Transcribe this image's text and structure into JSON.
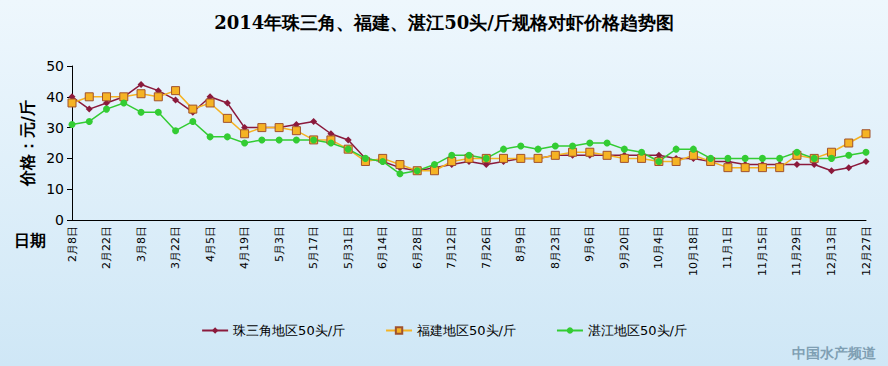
{
  "chart_data": {
    "type": "line",
    "title": "2014年珠三角、福建、湛江50头/斤规格对虾价格趋势图",
    "y_label": "价格：元/斤",
    "x_label": "日期",
    "annotations": [
      "中国水产频道"
    ],
    "categories": [
      "2月8日",
      null,
      "2月22日",
      null,
      "3月8日",
      null,
      "3月22日",
      null,
      "4月5日",
      null,
      "4月19日",
      null,
      "5月3日",
      null,
      "5月17日",
      null,
      "5月31日",
      null,
      "6月14日",
      null,
      "6月28日",
      null,
      "7月12日",
      null,
      "7月26日",
      null,
      "8月9日",
      null,
      "8月23日",
      null,
      "9月6日",
      null,
      "9月20日",
      null,
      "10月4日",
      null,
      "10月18日",
      null,
      "11月1日",
      null,
      "11月15日",
      null,
      "11月29日",
      null,
      "12月13日",
      null,
      "12月27日"
    ],
    "series": [
      {
        "name": "珠三角地区50头/斤",
        "color": "#8b1a3c",
        "marker": "diamond",
        "values": [
          40,
          36,
          38,
          40,
          44,
          42,
          39,
          35,
          40,
          38,
          30,
          30,
          30,
          31,
          32,
          28,
          26,
          20,
          19,
          17,
          16,
          17,
          18,
          19,
          18,
          19,
          20,
          20,
          21,
          21,
          21,
          21,
          21,
          21,
          21,
          20,
          20,
          19,
          19,
          18,
          18,
          18,
          18,
          18,
          16,
          17,
          19
        ]
      },
      {
        "name": "福建地区50头/斤",
        "color": "#f5b324",
        "marker": "square",
        "values": [
          38,
          40,
          40,
          40,
          41,
          40,
          42,
          36,
          38,
          33,
          28,
          30,
          30,
          29,
          26,
          26,
          23,
          19,
          20,
          18,
          16,
          16,
          19,
          20,
          20,
          20,
          20,
          20,
          21,
          22,
          22,
          21,
          20,
          20,
          19,
          19,
          21,
          19,
          17,
          17,
          17,
          17,
          21,
          20,
          22,
          25,
          28
        ]
      },
      {
        "name": "湛江地区50头/斤",
        "color": "#33cc33",
        "marker": "circle",
        "values": [
          31,
          32,
          36,
          38,
          35,
          35,
          29,
          32,
          27,
          27,
          25,
          26,
          26,
          26,
          26,
          25,
          23,
          20,
          19,
          15,
          16,
          18,
          21,
          21,
          20,
          23,
          24,
          23,
          24,
          24,
          25,
          25,
          23,
          22,
          19,
          23,
          23,
          20,
          20,
          20,
          20,
          20,
          22,
          20,
          20,
          21,
          22
        ]
      }
    ],
    "ylim": [
      0,
      50
    ],
    "yticks": [
      0,
      10,
      20,
      30,
      40,
      50
    ],
    "grid": false,
    "legend": "bottom"
  }
}
